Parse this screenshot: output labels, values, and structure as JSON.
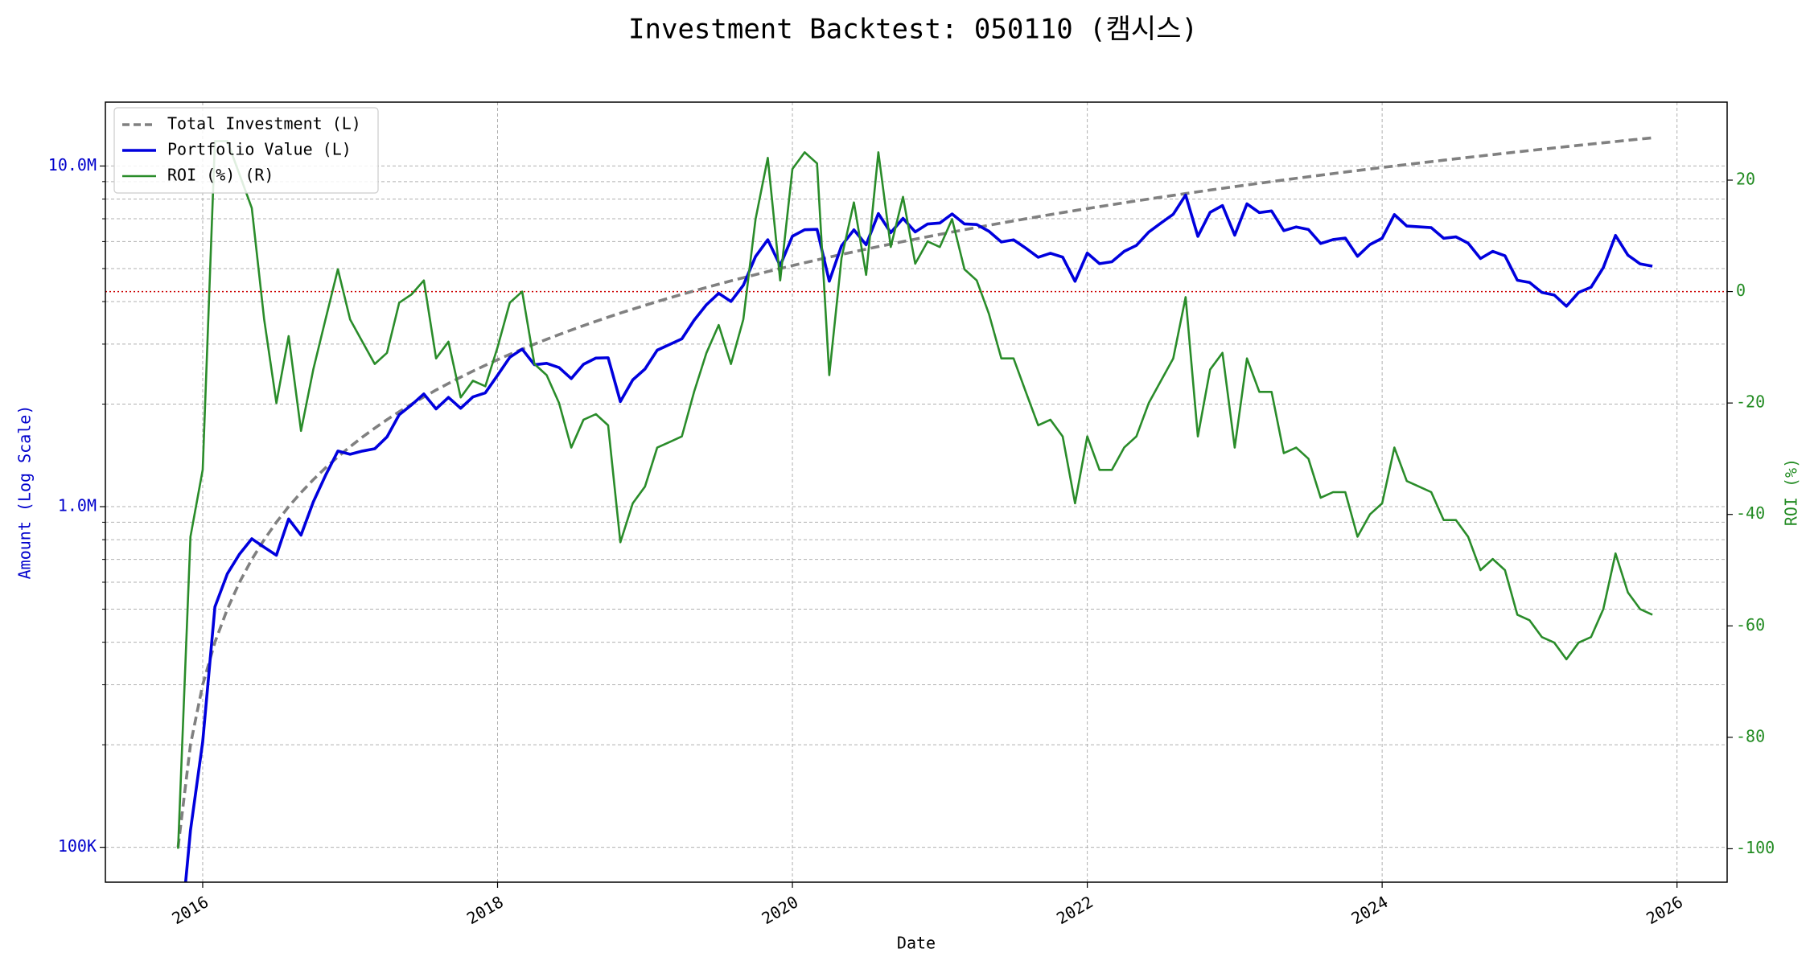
{
  "chart_data": {
    "type": "line",
    "title": "Investment Backtest: 050110 (캠시스)",
    "xlabel": "Date",
    "ylabel": "Amount (Log Scale)",
    "y2label": "ROI (%)",
    "log_y": true,
    "grid": true,
    "legend": "upper left",
    "x": [
      2015.833,
      2015.917,
      2016.0,
      2016.083,
      2016.167,
      2016.25,
      2016.333,
      2016.417,
      2016.5,
      2016.583,
      2016.667,
      2016.75,
      2016.833,
      2016.917,
      2017.0,
      2017.083,
      2017.167,
      2017.25,
      2017.333,
      2017.417,
      2017.5,
      2017.583,
      2017.667,
      2017.75,
      2017.833,
      2017.917,
      2018.0,
      2018.083,
      2018.167,
      2018.25,
      2018.333,
      2018.417,
      2018.5,
      2018.583,
      2018.667,
      2018.75,
      2018.833,
      2018.917,
      2019.0,
      2019.083,
      2019.167,
      2019.25,
      2019.333,
      2019.417,
      2019.5,
      2019.583,
      2019.667,
      2019.75,
      2019.833,
      2019.917,
      2020.0,
      2020.083,
      2020.167,
      2020.25,
      2020.333,
      2020.417,
      2020.5,
      2020.583,
      2020.667,
      2020.75,
      2020.833,
      2020.917,
      2021.0,
      2021.083,
      2021.167,
      2021.25,
      2021.333,
      2021.417,
      2021.5,
      2021.583,
      2021.667,
      2021.75,
      2021.833,
      2021.917,
      2022.0,
      2022.083,
      2022.167,
      2022.25,
      2022.333,
      2022.417,
      2022.5,
      2022.583,
      2022.667,
      2022.75,
      2022.833,
      2022.917,
      2023.0,
      2023.083,
      2023.167,
      2023.25,
      2023.333,
      2023.417,
      2023.5,
      2023.583,
      2023.667,
      2023.75,
      2023.833,
      2023.917,
      2024.0,
      2024.083,
      2024.167,
      2024.25,
      2024.333,
      2024.417,
      2024.5,
      2024.583,
      2024.667,
      2024.75,
      2024.833,
      2024.917,
      2025.0,
      2025.083,
      2025.167,
      2025.25,
      2025.333,
      2025.417,
      2025.5,
      2025.583,
      2025.667,
      2025.75,
      2025.833
    ],
    "series": [
      {
        "name": "Total Investment (L)",
        "color": "#808080",
        "dash": "dashed",
        "axis": "y",
        "values": [
          100000,
          200000,
          300000,
          400000,
          500000,
          600000,
          700000,
          800000,
          900000,
          1000000,
          1100000,
          1200000,
          1300000,
          1400000,
          1500000,
          1600000,
          1700000,
          1800000,
          1900000,
          2000000,
          2100000,
          2200000,
          2300000,
          2400000,
          2500000,
          2600000,
          2700000,
          2800000,
          2900000,
          3000000,
          3100000,
          3200000,
          3300000,
          3400000,
          3500000,
          3600000,
          3700000,
          3800000,
          3900000,
          4000000,
          4100000,
          4200000,
          4300000,
          4400000,
          4500000,
          4600000,
          4700000,
          4800000,
          4900000,
          5000000,
          5100000,
          5200000,
          5300000,
          5400000,
          5500000,
          5600000,
          5700000,
          5800000,
          5900000,
          6000000,
          6100000,
          6200000,
          6300000,
          6400000,
          6500000,
          6600000,
          6700000,
          6800000,
          6900000,
          7000000,
          7100000,
          7200000,
          7300000,
          7400000,
          7500000,
          7600000,
          7700000,
          7800000,
          7900000,
          8000000,
          8100000,
          8200000,
          8300000,
          8400000,
          8500000,
          8600000,
          8700000,
          8800000,
          8900000,
          9000000,
          9100000,
          9200000,
          9300000,
          9400000,
          9500000,
          9600000,
          9700000,
          9800000,
          9900000,
          10000000,
          10100000,
          10200000,
          10300000,
          10400000,
          10500000,
          10600000,
          10700000,
          10800000,
          10900000,
          11000000,
          11100000,
          11200000,
          11300000,
          11400000,
          11500000,
          11600000,
          11700000,
          11800000,
          11900000,
          12000000,
          12100000
        ]
      },
      {
        "name": "Portfolio Value (L)",
        "color": "#0000dd",
        "dash": "solid",
        "axis": "y",
        "values": [
          0,
          112000,
          204000,
          508000,
          635000,
          726000,
          805000,
          760000,
          720000,
          920000,
          825000,
          1032000,
          1235000,
          1456000,
          1425000,
          1456000,
          1479000,
          1602000,
          1862000,
          1990000,
          2142000,
          1936000,
          2093000,
          1944000,
          2100000,
          2158000,
          2430000,
          2744000,
          2900000,
          2610000,
          2635000,
          2560000,
          2376000,
          2618000,
          2730000,
          2736000,
          2035000,
          2356000,
          2535000,
          2880000,
          2993000,
          3108000,
          3526000,
          3916000,
          4230000,
          4002000,
          4465000,
          5424000,
          6076000,
          5100000,
          6222000,
          6500000,
          6519000,
          4590000,
          5830000,
          6496000,
          5871000,
          7250000,
          6372000,
          7020000,
          6405000,
          6758000,
          6804000,
          7232000,
          6760000,
          6732000,
          6432000,
          5984000,
          6072000,
          5740000,
          5396000,
          5544000,
          5402000,
          4588000,
          5550000,
          5168000,
          5236000,
          5616000,
          5846000,
          6400000,
          6804000,
          7216000,
          8217000,
          6216000,
          7310000,
          7654000,
          6264000,
          7744000,
          7298000,
          7380000,
          6461000,
          6624000,
          6510000,
          5922000,
          6080000,
          6144000,
          5432000,
          5880000,
          6138000,
          7200000,
          6666000,
          6630000,
          6592000,
          6136000,
          6195000,
          5936000,
          5350000,
          5616000,
          5450000,
          4620000,
          4551000,
          4256000,
          4181000,
          3876000,
          4255000,
          4408000,
          5031000,
          6254000,
          5474000,
          5160000,
          5082000
        ]
      },
      {
        "name": "ROI (%) (R)",
        "color": "#2a8c2a",
        "dash": "solid",
        "axis": "y2",
        "values": [
          -100,
          -44,
          -32,
          27,
          27,
          21,
          15,
          -5,
          -20,
          -8,
          -25,
          -14,
          -5,
          4,
          -5,
          -9,
          -13,
          -11,
          -2,
          -0.5,
          2,
          -12,
          -9,
          -19,
          -16,
          -17,
          -10,
          -2,
          0,
          -13,
          -15,
          -20,
          -28,
          -23,
          -22,
          -24,
          -45,
          -38,
          -35,
          -28,
          -27,
          -26,
          -18,
          -11,
          -6,
          -13,
          -5,
          13,
          24,
          2,
          22,
          25,
          23,
          -15,
          6,
          16,
          3,
          25,
          8,
          17,
          5,
          9,
          8,
          13,
          4,
          2,
          -4,
          -12,
          -12,
          -18,
          -24,
          -23,
          -26,
          -38,
          -26,
          -32,
          -32,
          -28,
          -26,
          -20,
          -16,
          -12,
          -1,
          -26,
          -14,
          -11,
          -28,
          -12,
          -18,
          -18,
          -29,
          -28,
          -30,
          -37,
          -36,
          -36,
          -44,
          -40,
          -38,
          -28,
          -34,
          -35,
          -36,
          -41,
          -41,
          -44,
          -50,
          -48,
          -50,
          -58,
          -59,
          -62,
          -63,
          -66,
          -63,
          -62,
          -57,
          -47,
          -54,
          -57,
          -58
        ]
      }
    ],
    "reference_line": {
      "axis": "y2",
      "value": 0,
      "color": "#cc0000"
    },
    "xlim": [
      2015.34,
      2026.34
    ],
    "xticks": [
      2016,
      2018,
      2020,
      2022,
      2024,
      2026
    ],
    "ylim": [
      79000,
      15400000
    ],
    "yticks": [
      {
        "value": 100000,
        "label": "100K"
      },
      {
        "value": 1000000,
        "label": "1.0M"
      },
      {
        "value": 10000000,
        "label": "10.0M"
      }
    ],
    "yminorticks": [
      200000,
      300000,
      400000,
      500000,
      600000,
      700000,
      800000,
      900000,
      2000000,
      3000000,
      4000000,
      5000000,
      6000000,
      7000000,
      8000000,
      9000000
    ],
    "y2lim": [
      -106,
      34
    ],
    "y2ticks": [
      -100,
      -80,
      -60,
      -40,
      -20,
      0,
      20
    ],
    "ytick_color": "#0000cc",
    "y2tick_color": "#228b22"
  }
}
